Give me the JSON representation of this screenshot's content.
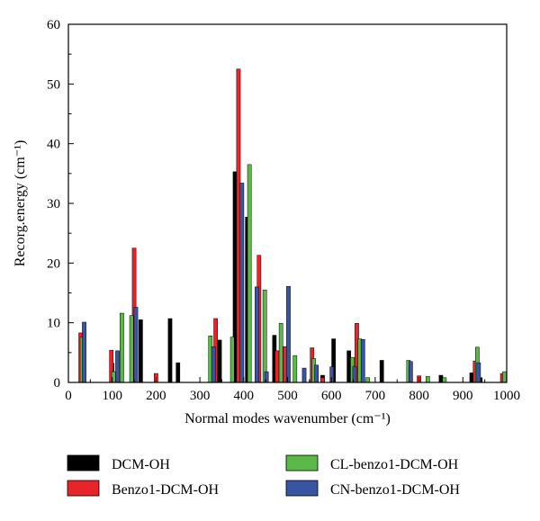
{
  "chart_data": {
    "type": "bar",
    "title": "",
    "xlabel": "Normal modes wavenumber (cm⁻¹)",
    "ylabel": "Recorg.energy (cm⁻¹)",
    "xlim": [
      0,
      1000
    ],
    "ylim": [
      0,
      60
    ],
    "xticks": [
      0,
      100,
      200,
      300,
      400,
      500,
      600,
      700,
      800,
      900,
      1000
    ],
    "yticks": [
      0,
      10,
      20,
      30,
      40,
      50,
      60
    ],
    "grid": false,
    "legend_position": "bottom",
    "series": [
      {
        "name": "DCM-OH",
        "color": "#000000",
        "x": [
          100,
          165,
          232,
          250,
          345,
          380,
          408,
          470,
          490,
          580,
          605,
          640,
          715,
          850,
          920,
          940
        ],
        "values": [
          3.2,
          10.5,
          10.7,
          3.3,
          7.1,
          35.3,
          27.7,
          7.9,
          3.5,
          1.2,
          7.3,
          5.3,
          3.7,
          1.2,
          1.6,
          0.8
        ]
      },
      {
        "name": "Benzo1-DCM-OH",
        "color": "#e8242a",
        "x": [
          28,
          98,
          150,
          200,
          336,
          388,
          435,
          476,
          494,
          556,
          580,
          658,
          800,
          928,
          990
        ],
        "values": [
          8.3,
          5.4,
          22.5,
          1.5,
          10.7,
          52.5,
          21.3,
          5.3,
          6.0,
          5.8,
          0.8,
          9.9,
          1.1,
          3.6,
          1.5
        ]
      },
      {
        "name": "CL-benzo1-DCM-OH",
        "color": "#5ab947",
        "x": [
          31,
          103,
          122,
          144,
          324,
          374,
          413,
          448,
          485,
          517,
          560,
          648,
          665,
          683,
          776,
          820,
          858,
          933,
          995
        ],
        "values": [
          7.6,
          1.8,
          11.6,
          11.2,
          7.8,
          7.6,
          36.5,
          15.5,
          9.9,
          4.5,
          4.0,
          4.2,
          7.3,
          0.8,
          3.7,
          1.0,
          0.8,
          5.9,
          1.8
        ]
      },
      {
        "name": "CN-benzo1-DCM-OH",
        "color": "#3a54a4",
        "x": [
          36,
          112,
          154,
          331,
          396,
          430,
          452,
          502,
          538,
          566,
          601,
          653,
          672,
          781,
          936
        ],
        "values": [
          10.1,
          5.3,
          12.6,
          6.0,
          33.4,
          16.0,
          1.8,
          16.1,
          2.4,
          2.9,
          2.6,
          2.7,
          7.2,
          3.5,
          3.3
        ]
      }
    ]
  }
}
